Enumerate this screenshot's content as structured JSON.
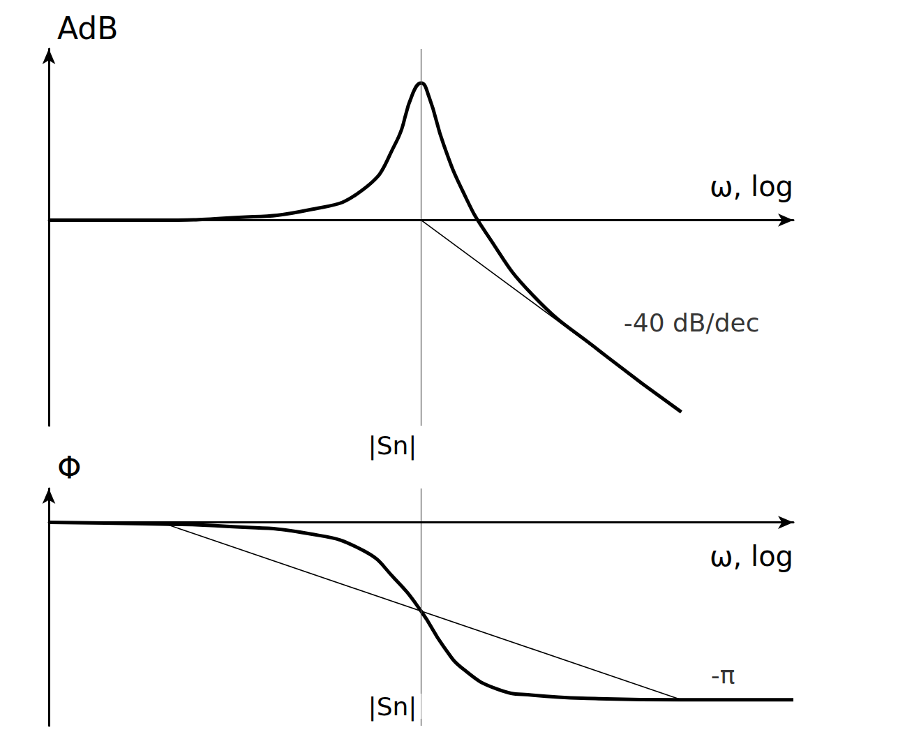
{
  "chart_data": [
    {
      "type": "line",
      "ylabel": "AdB",
      "xlabel": "ω, log",
      "log": "x",
      "grid": false,
      "tick_labels": "x",
      "xlim": [
        0.1,
        10
      ],
      "xticks": [
        {
          "value": 1,
          "label": "|Sn|"
        }
      ],
      "ylim": [
        -30,
        25
      ],
      "yticks": [],
      "series": [
        {
          "color": "#000000",
          "line_style": "solid",
          "marker": "none",
          "x": [
            0.1,
            0.2,
            0.3,
            0.5,
            0.7,
            0.85,
            0.95,
            1,
            1.05,
            1.15,
            1.3,
            1.5,
            2,
            3,
            5
          ],
          "values": [
            0,
            0,
            0.3,
            1.5,
            4.5,
            11,
            18.5,
            20,
            18,
            11,
            4,
            -2,
            -11,
            -19,
            -28
          ]
        },
        {
          "color": "#000000",
          "line_style": "thin",
          "marker": "none",
          "x": [
            1,
            5
          ],
          "values": [
            0,
            -28
          ]
        }
      ],
      "annotations": [
        {
          "text": "-40 dB/dec",
          "x": 3.5,
          "y": -15
        }
      ]
    },
    {
      "type": "line",
      "ylabel": "Φ",
      "xlabel": "ω, log",
      "log": "x",
      "grid": false,
      "tick_labels": "x",
      "xlim": [
        0.1,
        10
      ],
      "xticks": [
        {
          "value": 1,
          "label": "|Sn|"
        }
      ],
      "ylim": [
        -3.6,
        0.6
      ],
      "yticks": [],
      "series": [
        {
          "color": "#000000",
          "line_style": "solid",
          "marker": "none",
          "x": [
            0.1,
            0.2,
            0.3,
            0.5,
            0.7,
            0.85,
            1,
            1.15,
            1.3,
            1.6,
            2,
            3,
            5,
            10
          ],
          "values": [
            0,
            -0.03,
            -0.07,
            -0.2,
            -0.5,
            -1.0,
            -1.57,
            -2.2,
            -2.6,
            -2.95,
            -3.06,
            -3.12,
            -3.14,
            -3.14
          ]
        },
        {
          "color": "#000000",
          "line_style": "thin",
          "marker": "none",
          "x": [
            0.2,
            5
          ],
          "values": [
            0,
            -3.14
          ]
        }
      ],
      "annotations": [
        {
          "text": "-π",
          "x": 6,
          "y": -2.7
        }
      ]
    }
  ]
}
